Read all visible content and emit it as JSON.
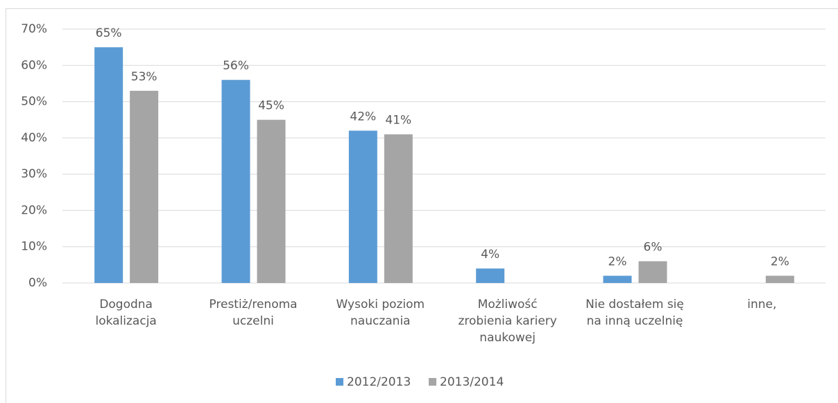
{
  "chart_data": {
    "type": "bar",
    "categories": [
      "Dogodna lokalizacja",
      "Prestiż/renoma uczelni",
      "Wysoki poziom nauczania",
      "Możliwość zrobienia kariery naukowej",
      "Nie dostałem się na inną uczelnię",
      "inne,"
    ],
    "series": [
      {
        "name": "2012/2013",
        "color": "#5b9bd5",
        "values": [
          65,
          56,
          42,
          4,
          2,
          null
        ],
        "value_labels": [
          "65%",
          "56%",
          "42%",
          "4%",
          "2%",
          null
        ]
      },
      {
        "name": "2013/2014",
        "color": "#a5a5a5",
        "values": [
          53,
          45,
          41,
          null,
          6,
          2
        ],
        "value_labels": [
          "53%",
          "45%",
          "41%",
          null,
          "6%",
          "2%"
        ]
      }
    ],
    "ylim": [
      0,
      70
    ],
    "yticks": [
      {
        "value": 0,
        "label": "0%"
      },
      {
        "value": 10,
        "label": "10%"
      },
      {
        "value": 20,
        "label": "20%"
      },
      {
        "value": 30,
        "label": "30%"
      },
      {
        "value": 40,
        "label": "40%"
      },
      {
        "value": 50,
        "label": "50%"
      },
      {
        "value": 60,
        "label": "60%"
      },
      {
        "value": 70,
        "label": "70%"
      }
    ],
    "grid": true,
    "legend": "bottom"
  }
}
